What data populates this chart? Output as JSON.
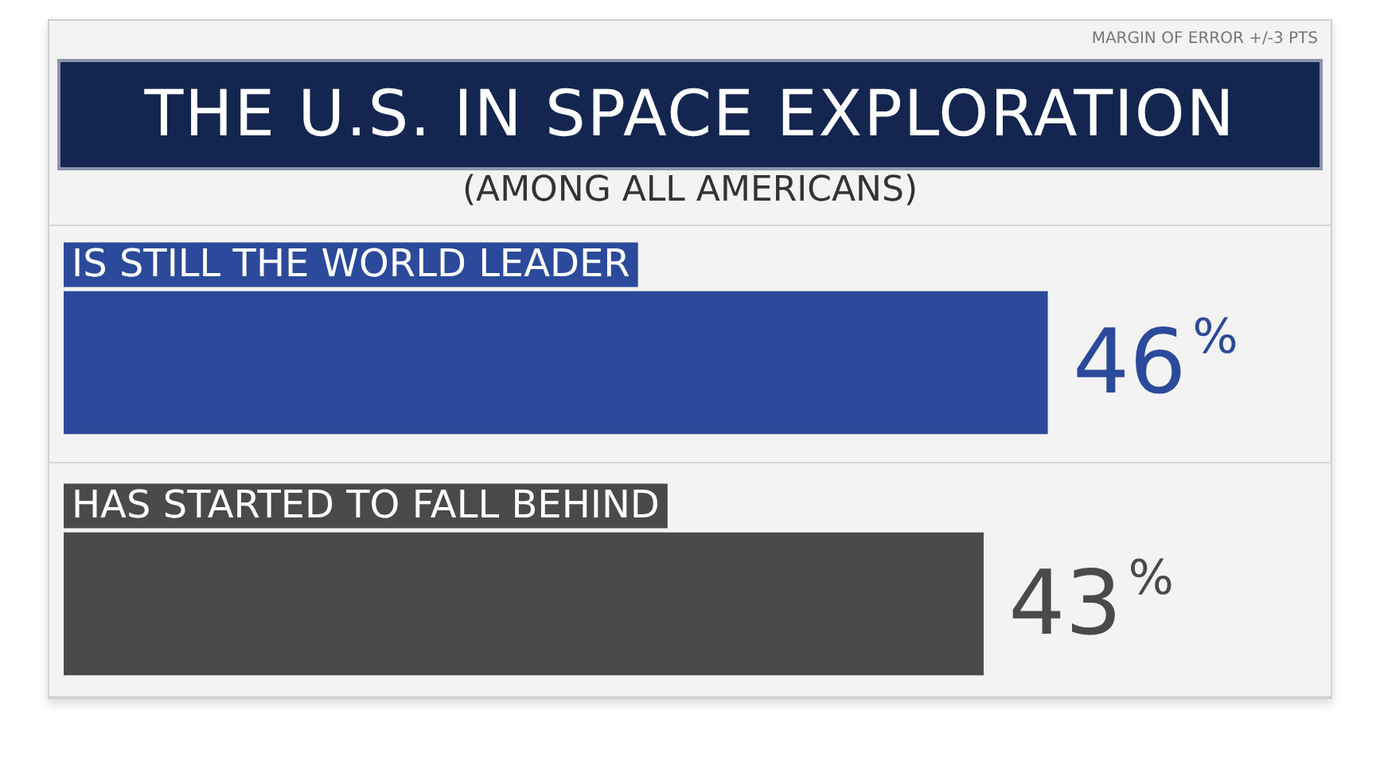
{
  "chart_data": {
    "type": "bar",
    "orientation": "horizontal",
    "title": "THE U.S. IN SPACE EXPLORATION",
    "subtitle": "(AMONG ALL AMERICANS)",
    "annotations": [
      "MARGIN OF ERROR +/-3 PTS"
    ],
    "categories": [
      "IS STILL THE WORLD LEADER",
      "HAS STARTED TO FALL BEHIND"
    ],
    "values": [
      46,
      43
    ],
    "colors": [
      "#2c4a9b",
      "#4a4a4a"
    ],
    "value_labels": [
      "46%",
      "43%"
    ],
    "legend": false,
    "tick_labels": "y"
  }
}
